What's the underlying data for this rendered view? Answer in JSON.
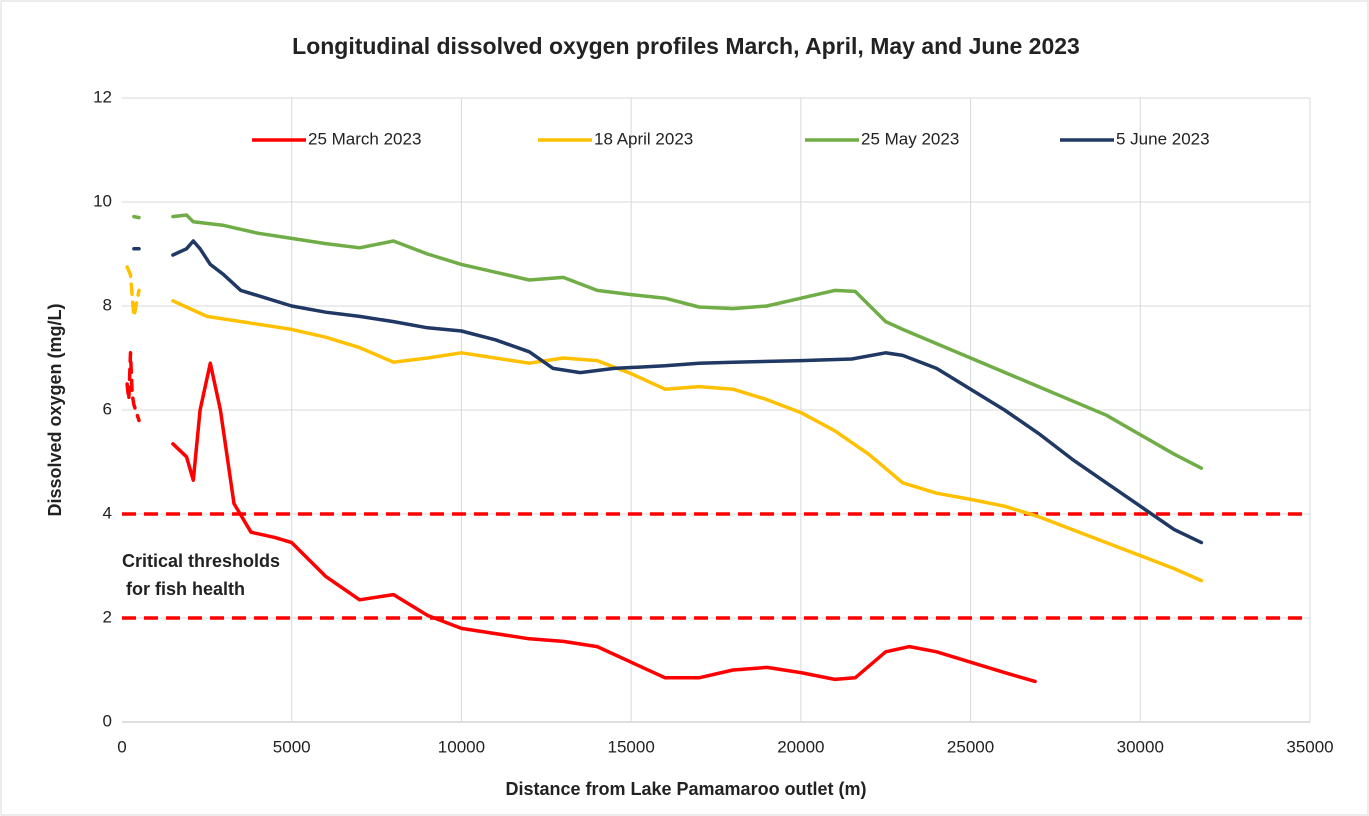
{
  "chart_data": {
    "type": "line",
    "title": "Longitudinal dissolved oxygen profiles March, April, May and June 2023",
    "x_label": "Distance from Lake Pamamaroo outlet (m)",
    "y_label": "Dissolved oxygen (mg/L)",
    "xlim": [
      0,
      35000
    ],
    "xticks": [
      0,
      5000,
      10000,
      15000,
      20000,
      25000,
      30000,
      35000
    ],
    "ylim": [
      0,
      12
    ],
    "yticks": [
      0,
      2,
      4,
      6,
      8,
      10,
      12
    ],
    "grid": true,
    "legend": "top",
    "thresholds": {
      "color": "#ff0000",
      "values": [
        4,
        2
      ]
    },
    "annotation": [
      "Critical thresholds",
      "for fish health"
    ],
    "series": [
      {
        "name": "25 March 2023",
        "color": "#ff0000",
        "x": [
          150,
          200,
          250,
          300,
          350,
          500,
          null,
          1500,
          1900,
          2100,
          2300,
          2600,
          2900,
          3300,
          3800,
          4500,
          5000,
          6000,
          7000,
          8000,
          9000,
          10000,
          11000,
          12000,
          13000,
          14000,
          15000,
          16000,
          17000,
          18000,
          19000,
          20000,
          21000,
          21600,
          22500,
          23200,
          24000,
          25000,
          26000,
          26900
        ],
        "values": [
          6.5,
          6.2,
          7.1,
          6.3,
          6.1,
          5.8,
          null,
          5.35,
          5.1,
          4.65,
          6.0,
          6.9,
          6.0,
          4.2,
          3.65,
          3.55,
          3.45,
          2.8,
          2.35,
          2.45,
          2.05,
          1.8,
          1.7,
          1.6,
          1.55,
          1.45,
          1.15,
          0.85,
          0.85,
          1.0,
          1.05,
          0.95,
          0.82,
          0.85,
          1.35,
          1.45,
          1.35,
          1.15,
          0.95,
          0.78
        ]
      },
      {
        "name": "18 April 2023",
        "color": "#ffc000",
        "x": [
          150,
          250,
          350,
          500,
          null,
          1500,
          2000,
          2500,
          4000,
          5000,
          6000,
          7000,
          8000,
          9000,
          10000,
          11000,
          12000,
          13000,
          14000,
          15000,
          16000,
          17000,
          18000,
          19000,
          20000,
          21000,
          22000,
          23000,
          24000,
          25000,
          26000,
          27000,
          28000,
          29000,
          30000,
          31000,
          31800
        ],
        "values": [
          8.75,
          8.6,
          7.8,
          8.3,
          null,
          8.1,
          7.95,
          7.8,
          7.65,
          7.55,
          7.4,
          7.2,
          6.92,
          7.0,
          7.1,
          7.0,
          6.9,
          7.0,
          6.95,
          6.7,
          6.4,
          6.45,
          6.4,
          6.2,
          5.95,
          5.6,
          5.15,
          4.6,
          4.4,
          4.28,
          4.15,
          3.95,
          3.7,
          3.45,
          3.2,
          2.95,
          2.72
        ]
      },
      {
        "name": "25 May 2023",
        "color": "#70ad47",
        "x": [
          350,
          500,
          null,
          1500,
          1900,
          2100,
          3000,
          4000,
          5000,
          6000,
          7000,
          8000,
          9000,
          10000,
          11000,
          12000,
          13000,
          14000,
          15000,
          16000,
          17000,
          18000,
          19000,
          20000,
          21000,
          21600,
          22500,
          23000,
          25000,
          27000,
          29000,
          31000,
          31800
        ],
        "values": [
          9.72,
          9.7,
          null,
          9.72,
          9.75,
          9.62,
          9.55,
          9.4,
          9.3,
          9.2,
          9.12,
          9.25,
          9.0,
          8.8,
          8.65,
          8.5,
          8.55,
          8.3,
          8.22,
          8.15,
          7.98,
          7.95,
          8.0,
          8.15,
          8.3,
          8.28,
          7.7,
          7.55,
          7.0,
          6.45,
          5.9,
          5.15,
          4.88
        ]
      },
      {
        "name": "5 June 2023",
        "color": "#203864",
        "x": [
          350,
          500,
          null,
          1500,
          1900,
          2100,
          2300,
          2600,
          3000,
          3500,
          4000,
          5000,
          6000,
          7000,
          8000,
          9000,
          10000,
          11000,
          12000,
          12700,
          13500,
          14500,
          16000,
          17000,
          18000,
          20000,
          21500,
          22500,
          23000,
          24000,
          25000,
          26000,
          27000,
          28000,
          29000,
          30000,
          31000,
          31800
        ],
        "values": [
          9.1,
          9.1,
          null,
          8.98,
          9.1,
          9.25,
          9.1,
          8.8,
          8.6,
          8.3,
          8.2,
          8.0,
          7.88,
          7.8,
          7.7,
          7.58,
          7.52,
          7.35,
          7.12,
          6.8,
          6.72,
          6.8,
          6.85,
          6.9,
          6.92,
          6.95,
          6.98,
          7.1,
          7.05,
          6.8,
          6.4,
          6.0,
          5.55,
          5.05,
          4.6,
          4.15,
          3.7,
          3.45
        ]
      }
    ]
  }
}
